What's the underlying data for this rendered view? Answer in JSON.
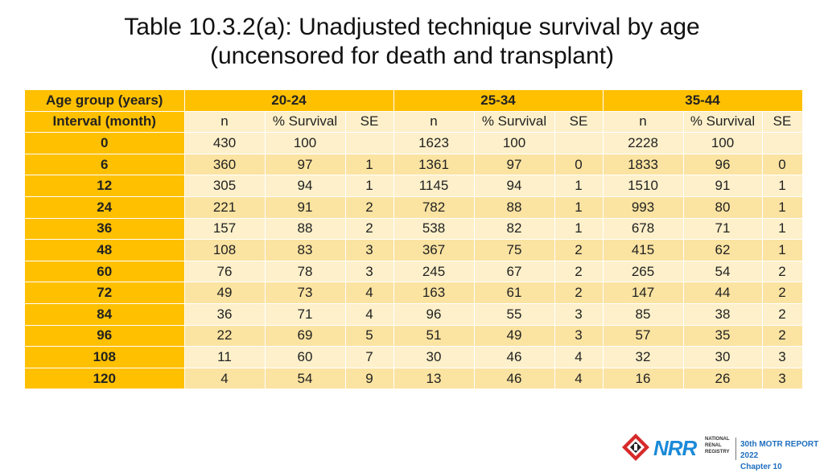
{
  "title": {
    "line1": "Table 10.3.2(a): Unadjusted technique survival by age",
    "line2": "(uncensored for death and transplant)"
  },
  "table": {
    "row_header_1": "Age group (years)",
    "row_header_2": "Interval (month)",
    "groups": [
      "20-24",
      "25-34",
      "35-44"
    ],
    "subheaders": [
      "n",
      "% Survival",
      "SE"
    ],
    "rows": [
      {
        "interval": "0",
        "cells": [
          "430",
          "100",
          "",
          "1623",
          "100",
          "",
          "2228",
          "100",
          ""
        ]
      },
      {
        "interval": "6",
        "cells": [
          "360",
          "97",
          "1",
          "1361",
          "97",
          "0",
          "1833",
          "96",
          "0"
        ]
      },
      {
        "interval": "12",
        "cells": [
          "305",
          "94",
          "1",
          "1145",
          "94",
          "1",
          "1510",
          "91",
          "1"
        ]
      },
      {
        "interval": "24",
        "cells": [
          "221",
          "91",
          "2",
          "782",
          "88",
          "1",
          "993",
          "80",
          "1"
        ]
      },
      {
        "interval": "36",
        "cells": [
          "157",
          "88",
          "2",
          "538",
          "82",
          "1",
          "678",
          "71",
          "1"
        ]
      },
      {
        "interval": "48",
        "cells": [
          "108",
          "83",
          "3",
          "367",
          "75",
          "2",
          "415",
          "62",
          "1"
        ]
      },
      {
        "interval": "60",
        "cells": [
          "76",
          "78",
          "3",
          "245",
          "67",
          "2",
          "265",
          "54",
          "2"
        ]
      },
      {
        "interval": "72",
        "cells": [
          "49",
          "73",
          "4",
          "163",
          "61",
          "2",
          "147",
          "44",
          "2"
        ]
      },
      {
        "interval": "84",
        "cells": [
          "36",
          "71",
          "4",
          "96",
          "55",
          "3",
          "85",
          "38",
          "2"
        ]
      },
      {
        "interval": "96",
        "cells": [
          "22",
          "69",
          "5",
          "51",
          "49",
          "3",
          "57",
          "35",
          "2"
        ]
      },
      {
        "interval": "108",
        "cells": [
          "11",
          "60",
          "7",
          "30",
          "46",
          "4",
          "32",
          "30",
          "3"
        ]
      },
      {
        "interval": "120",
        "cells": [
          "4",
          "54",
          "9",
          "13",
          "46",
          "4",
          "16",
          "26",
          "3"
        ]
      }
    ]
  },
  "logo": {
    "brand": "NRR",
    "org_line1": "NATIONAL",
    "org_line2": "RENAL",
    "org_line3": "REGISTRY",
    "report": "30th MOTR REPORT 2022",
    "chapter": "Chapter 10"
  },
  "colors": {
    "header_gold": "#ffc000",
    "row_light": "#fdf0ca",
    "row_mid": "#fbe3a1",
    "logo_blue": "#1a8ad8",
    "logo_red": "#d62a2a"
  }
}
